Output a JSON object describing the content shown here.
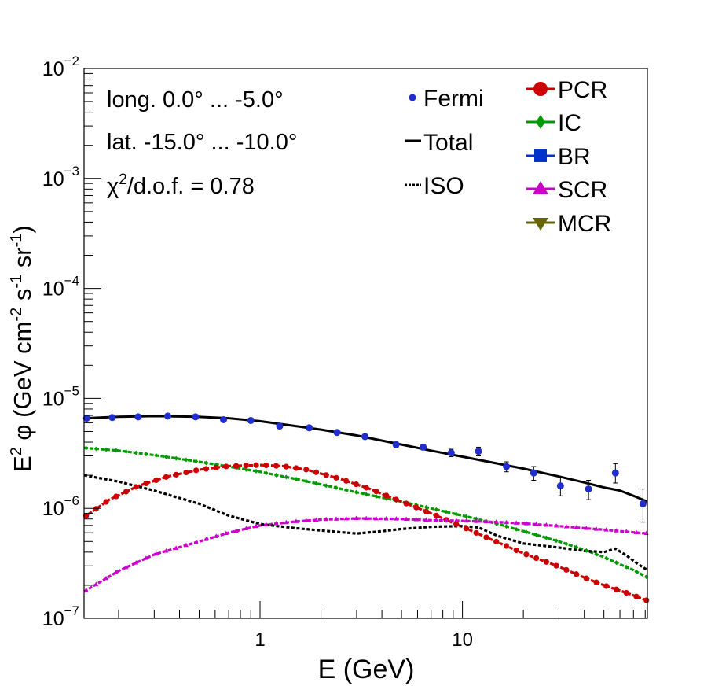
{
  "chart_data": {
    "type": "line",
    "scale": {
      "x": "log",
      "y": "log"
    },
    "xlim": [
      0.135,
      82
    ],
    "ylim": [
      1e-07,
      0.01
    ],
    "xlabel": "E (GeV)",
    "ylabel": {
      "prefix": "E",
      "prefix_sup": "2",
      "phi": " φ (GeV cm",
      "cm_sup": "-2",
      "s": " s",
      "s_sup": "-1",
      "sr": " sr",
      "sr_sup": "-1",
      "close": ")"
    },
    "x_ticks": [
      {
        "value": 1,
        "label": "1"
      },
      {
        "value": 10,
        "label": "10"
      }
    ],
    "y_ticks": [
      {
        "value": 1e-07,
        "base": "10",
        "exp": "−7"
      },
      {
        "value": 1e-06,
        "base": "10",
        "exp": "−6"
      },
      {
        "value": 1e-05,
        "base": "10",
        "exp": "−5"
      },
      {
        "value": 0.0001,
        "base": "10",
        "exp": "−4"
      },
      {
        "value": 0.001,
        "base": "10",
        "exp": "−3"
      },
      {
        "value": 0.01,
        "base": "10",
        "exp": "−2"
      }
    ],
    "annotations": {
      "long": "long. 0.0° ... -5.0°",
      "lat": "lat. -15.0° ... -10.0°",
      "chi_symbol": "χ",
      "chi_sup": "2",
      "chi_rest": "/d.o.f. = 0.78"
    },
    "legend": {
      "position": "top-right",
      "entries": [
        {
          "label": "Fermi",
          "color": "#1f2ecc",
          "marker": "circle-small"
        },
        {
          "label": "Total",
          "color": "#000000",
          "marker": "line"
        },
        {
          "label": "ISO",
          "color": "#000000",
          "marker": "dotted"
        },
        {
          "label": "PCR",
          "color": "#cc0000",
          "marker": "circle"
        },
        {
          "label": "IC",
          "color": "#009900",
          "marker": "diamond"
        },
        {
          "label": "BR",
          "color": "#0033cc",
          "marker": "square"
        },
        {
          "label": "SCR",
          "color": "#cc00cc",
          "marker": "triangle-up"
        },
        {
          "label": "MCR",
          "color": "#666600",
          "marker": "triangle-down"
        }
      ]
    },
    "fermi": {
      "color": "#1f2ecc",
      "x": [
        0.139,
        0.186,
        0.25,
        0.35,
        0.48,
        0.66,
        0.9,
        1.25,
        1.75,
        2.4,
        3.3,
        4.7,
        6.4,
        8.8,
        12.0,
        16.5,
        22.5,
        30.5,
        42.0,
        57.0,
        78.0
      ],
      "y": [
        6.6e-06,
        6.7e-06,
        6.8e-06,
        6.9e-06,
        6.8e-06,
        6.4e-06,
        6.3e-06,
        5.6e-06,
        5.4e-06,
        4.9e-06,
        4.5e-06,
        3.8e-06,
        3.6e-06,
        3.2e-06,
        3.3e-06,
        2.4e-06,
        2.1e-06,
        1.6e-06,
        1.5e-06,
        2.1e-06,
        1.1e-06
      ],
      "err_low": [
        6.3e-06,
        6.4e-06,
        6.5e-06,
        6.6e-06,
        6.5e-06,
        6.1e-06,
        6e-06,
        5.35e-06,
        5.15e-06,
        4.7e-06,
        4.3e-06,
        3.6e-06,
        3.4e-06,
        2.95e-06,
        3e-06,
        2.15e-06,
        1.8e-06,
        1.3e-06,
        1.2e-06,
        1.7e-06,
        7.5e-07
      ],
      "err_high": [
        6.9e-06,
        7e-06,
        7.1e-06,
        7.2e-06,
        7.1e-06,
        6.7e-06,
        6.6e-06,
        5.85e-06,
        5.65e-06,
        5.1e-06,
        4.7e-06,
        4e-06,
        3.8e-06,
        3.45e-06,
        3.6e-06,
        2.65e-06,
        2.4e-06,
        1.9e-06,
        1.8e-06,
        2.55e-06,
        1.5e-06
      ]
    },
    "series": [
      {
        "name": "Total",
        "color": "#000000",
        "style": "solid",
        "x": [
          0.135,
          0.2,
          0.3,
          0.5,
          0.7,
          1.0,
          1.5,
          2.0,
          3.0,
          5.0,
          7.0,
          10.0,
          15.0,
          20.0,
          30.0,
          40.0,
          50.0,
          60.0,
          70.0,
          82.0
        ],
        "y": [
          6.6e-06,
          6.8e-06,
          6.9e-06,
          6.8e-06,
          6.6e-06,
          6.2e-06,
          5.6e-06,
          5.2e-06,
          4.6e-06,
          3.8e-06,
          3.35e-06,
          2.95e-06,
          2.55e-06,
          2.3e-06,
          1.95e-06,
          1.72e-06,
          1.55e-06,
          1.45e-06,
          1.3e-06,
          1.15e-06
        ]
      },
      {
        "name": "IC",
        "color": "#009900",
        "style": "dashed",
        "x": [
          0.135,
          0.2,
          0.3,
          0.5,
          0.7,
          1.0,
          1.5,
          2.0,
          3.0,
          5.0,
          7.0,
          10.0,
          15.0,
          20.0,
          30.0,
          40.0,
          50.0,
          60.0,
          70.0,
          82.0
        ],
        "y": [
          3.55e-06,
          3.35e-06,
          3.05e-06,
          2.65e-06,
          2.4e-06,
          2.15e-06,
          1.85e-06,
          1.65e-06,
          1.4e-06,
          1.15e-06,
          1e-06,
          8.6e-07,
          7.2e-07,
          6.2e-07,
          5e-07,
          4.2e-07,
          3.6e-07,
          3.1e-07,
          2.75e-07,
          2.35e-07
        ]
      },
      {
        "name": "PCR",
        "color": "#cc0000",
        "style": "dashed",
        "x": [
          0.135,
          0.18,
          0.25,
          0.35,
          0.5,
          0.7,
          1.0,
          1.3,
          1.7,
          2.5,
          3.5,
          5.0,
          7.0,
          10.0,
          15.0,
          20.0,
          30.0,
          40.0,
          50.0,
          65.0,
          82.0
        ],
        "y": [
          8.3e-07,
          1.2e-06,
          1.6e-06,
          1.95e-06,
          2.25e-06,
          2.42e-06,
          2.48e-06,
          2.42e-06,
          2.25e-06,
          1.85e-06,
          1.5e-06,
          1.15e-06,
          9e-07,
          6.8e-07,
          4.9e-07,
          3.9e-07,
          2.95e-07,
          2.35e-07,
          2e-07,
          1.7e-07,
          1.45e-07
        ]
      },
      {
        "name": "SCR",
        "color": "#cc00cc",
        "style": "dashed",
        "x": [
          0.135,
          0.2,
          0.3,
          0.5,
          0.7,
          1.0,
          1.5,
          2.0,
          3.0,
          5.0,
          7.0,
          10.0,
          15.0,
          20.0,
          30.0,
          40.0,
          50.0,
          60.0,
          70.0,
          82.0
        ],
        "y": [
          1.75e-07,
          2.7e-07,
          3.8e-07,
          5e-07,
          6e-07,
          7e-07,
          7.6e-07,
          7.9e-07,
          8.1e-07,
          8e-07,
          7.8e-07,
          7.7e-07,
          7.5e-07,
          7.3e-07,
          6.9e-07,
          6.6e-07,
          6.4e-07,
          6.2e-07,
          6.05e-07,
          5.9e-07
        ]
      },
      {
        "name": "ISO",
        "color": "#000000",
        "style": "dotted",
        "x": [
          0.135,
          0.2,
          0.3,
          0.5,
          0.7,
          1.0,
          1.5,
          2.0,
          3.0,
          4.0,
          5.0,
          7.0,
          10.0,
          12.0,
          15.0,
          20.0,
          30.0,
          40.0,
          50.0,
          57.0,
          65.0,
          74.0,
          82.0
        ],
        "y": [
          2e-06,
          1.75e-06,
          1.45e-06,
          1.1e-06,
          8.6e-07,
          7.2e-07,
          6.6e-07,
          6.3e-07,
          5.9e-07,
          6.2e-07,
          6.5e-07,
          6.8e-07,
          6.9e-07,
          6.7e-07,
          5.6e-07,
          4.8e-07,
          4.4e-07,
          4.1e-07,
          4e-07,
          4.3e-07,
          3.7e-07,
          3.1e-07,
          2.75e-07
        ]
      }
    ]
  }
}
